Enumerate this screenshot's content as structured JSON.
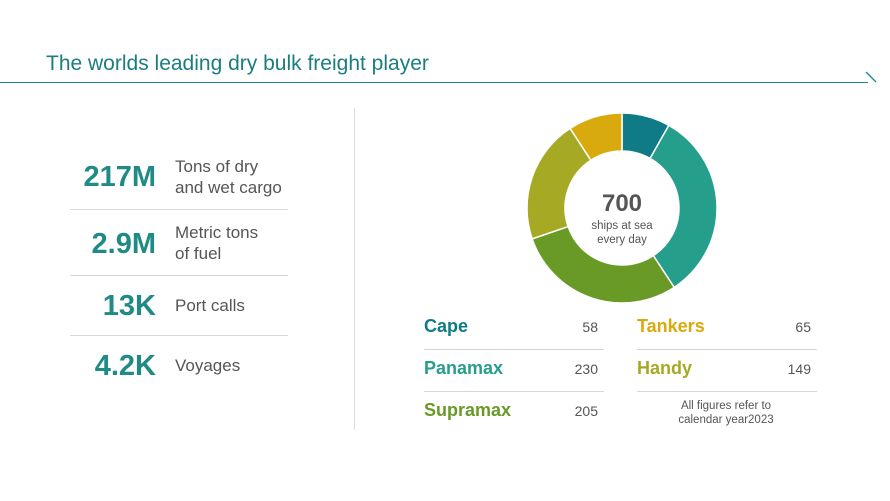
{
  "title": "The worlds leading dry bulk freight player",
  "stats": [
    {
      "value": "217M",
      "label": "Tons of dry\nand wet cargo"
    },
    {
      "value": "2.9M",
      "label": "Metric tons\nof fuel"
    },
    {
      "value": "13K",
      "label": "Port calls"
    },
    {
      "value": "4.2K",
      "label": "Voyages"
    }
  ],
  "donut_center": {
    "value": "700",
    "label": "ships at sea\nevery day"
  },
  "legend": [
    {
      "name": "Cape",
      "value": "58"
    },
    {
      "name": "Panamax",
      "value": "230"
    },
    {
      "name": "Supramax",
      "value": "205"
    },
    {
      "name": "Tankers",
      "value": "65"
    },
    {
      "name": "Handy",
      "value": "149"
    }
  ],
  "footnote": "All figures refer to\ncalendar year2023",
  "chart_data": {
    "type": "pie",
    "categories": [
      "Cape",
      "Panamax",
      "Supramax",
      "Handy",
      "Tankers"
    ],
    "values": [
      58,
      230,
      205,
      149,
      65
    ],
    "colors": [
      "#0f7b86",
      "#269e8c",
      "#6a9a26",
      "#a6a923",
      "#d9aa0e"
    ],
    "donut": true
  }
}
